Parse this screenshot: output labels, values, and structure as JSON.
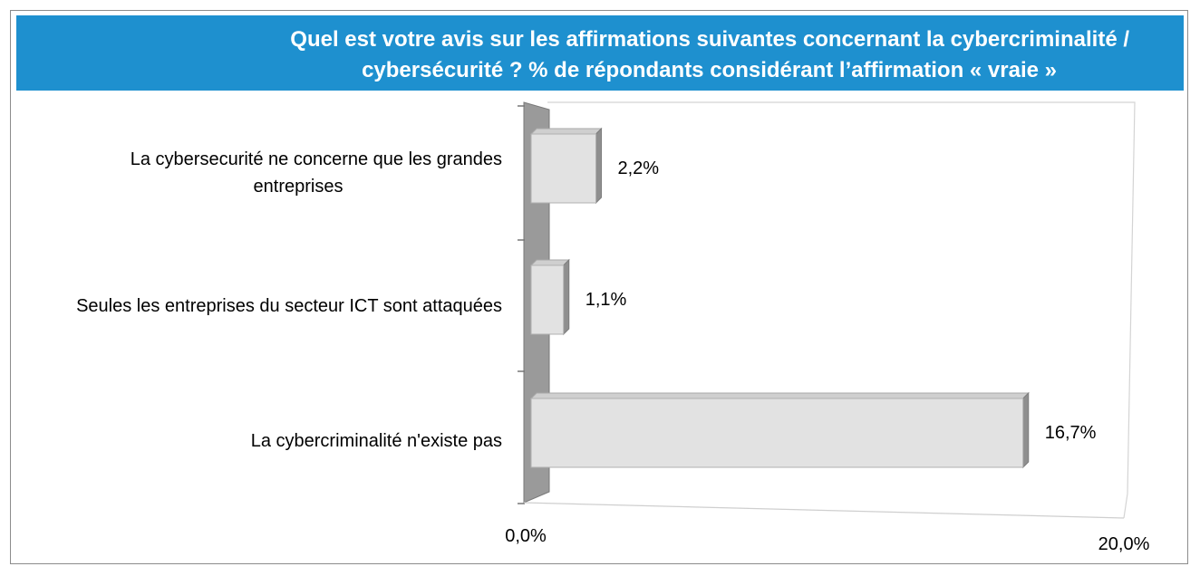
{
  "title": {
    "line1": "Quel est votre avis sur les affirmations suivantes concernant la cybercriminalité /",
    "line2": "cybersécurité ? % de répondants considérant l’affirmation « vraie »"
  },
  "colors": {
    "title_bg": "#1e90cf",
    "title_text": "#ffffff",
    "bar_face": "#e2e2e2",
    "bar_side": "#8f8f8f",
    "axis_wall": "#9a9a9a"
  },
  "chart_data": {
    "type": "bar",
    "orientation": "horizontal",
    "style": "3d",
    "categories": [
      "La cybersecurité ne concerne que les grandes entreprises",
      "Seules les entreprises du secteur ICT sont attaquées",
      "La cybercriminalité n'existe pas"
    ],
    "category_label_lines": [
      [
        "La cybersecurité ne concerne que les grandes",
        "entreprises"
      ],
      [
        "Seules les entreprises du secteur ICT sont attaquées"
      ],
      [
        "La cybercriminalité n'existe pas"
      ]
    ],
    "values": [
      2.2,
      1.1,
      16.7
    ],
    "value_labels": [
      "2,2%",
      "1,1%",
      "16,7%"
    ],
    "xlim": [
      0,
      20
    ],
    "tick_labels": [
      "0,0%",
      "20,0%"
    ],
    "grid": false,
    "legend": "none"
  }
}
